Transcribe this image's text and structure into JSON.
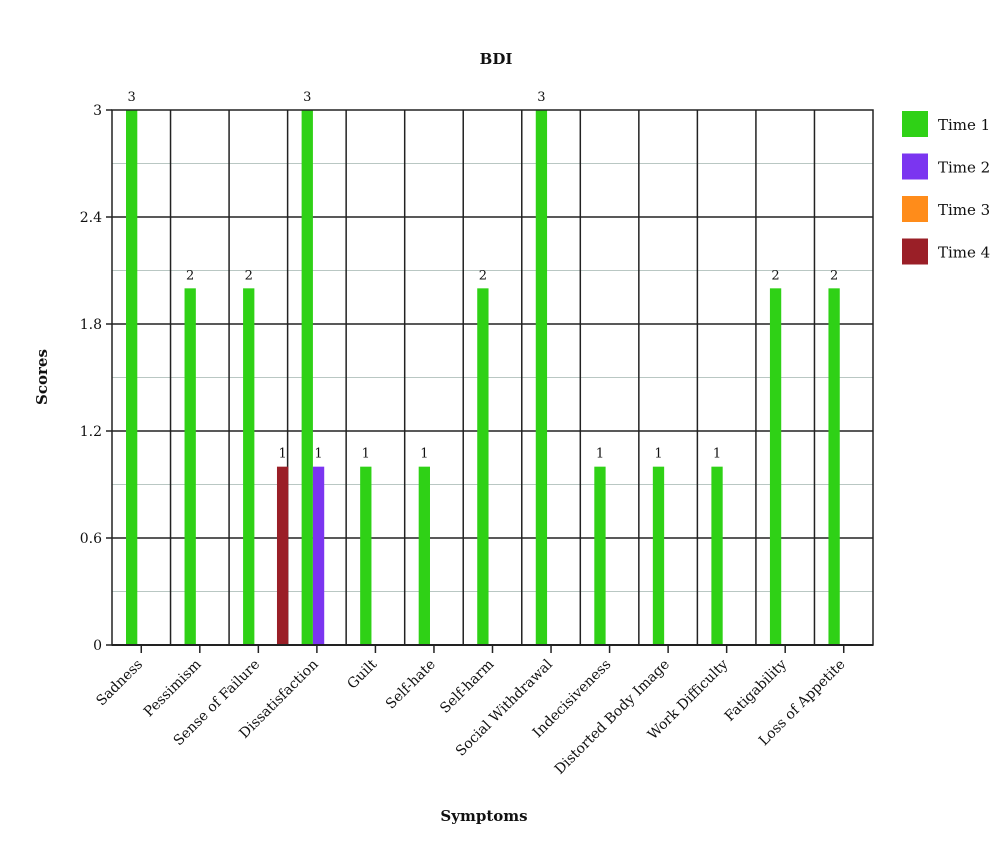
{
  "chart_data": {
    "type": "bar",
    "title": "BDI",
    "xlabel": "Symptoms",
    "ylabel": "Scores",
    "ylim": [
      0,
      3
    ],
    "yticks": [
      "0",
      "0.6",
      "1.2",
      "1.8",
      "2.4",
      "3"
    ],
    "grid": true,
    "legend_position": "right",
    "categories": [
      "Sadness",
      "Pessimism",
      "Sense of Failure",
      "Dissatisfaction",
      "Guilt",
      "Self-hate",
      "Self-harm",
      "Social Withdrawal",
      "Indecisiveness",
      "Distorted Body Image",
      "Work Difficulty",
      "Fatigability",
      "Loss of Appetite"
    ],
    "series": [
      {
        "name": "Time 1",
        "color": "#2fd116",
        "values": [
          3,
          2,
          2,
          3,
          1,
          1,
          2,
          3,
          1,
          1,
          1,
          2,
          2
        ]
      },
      {
        "name": "Time 2",
        "color": "#7b35f0",
        "values": [
          0,
          0,
          0,
          1,
          0,
          0,
          0,
          0,
          0,
          0,
          0,
          0,
          0
        ]
      },
      {
        "name": "Time 3",
        "color": "#ff8c1a",
        "values": [
          0,
          0,
          0,
          0,
          0,
          0,
          0,
          0,
          0,
          0,
          0,
          0,
          0
        ]
      },
      {
        "name": "Time 4",
        "color": "#9a1f27",
        "values": [
          0,
          0,
          1,
          0,
          0,
          0,
          0,
          0,
          0,
          0,
          0,
          0,
          0
        ]
      }
    ]
  }
}
